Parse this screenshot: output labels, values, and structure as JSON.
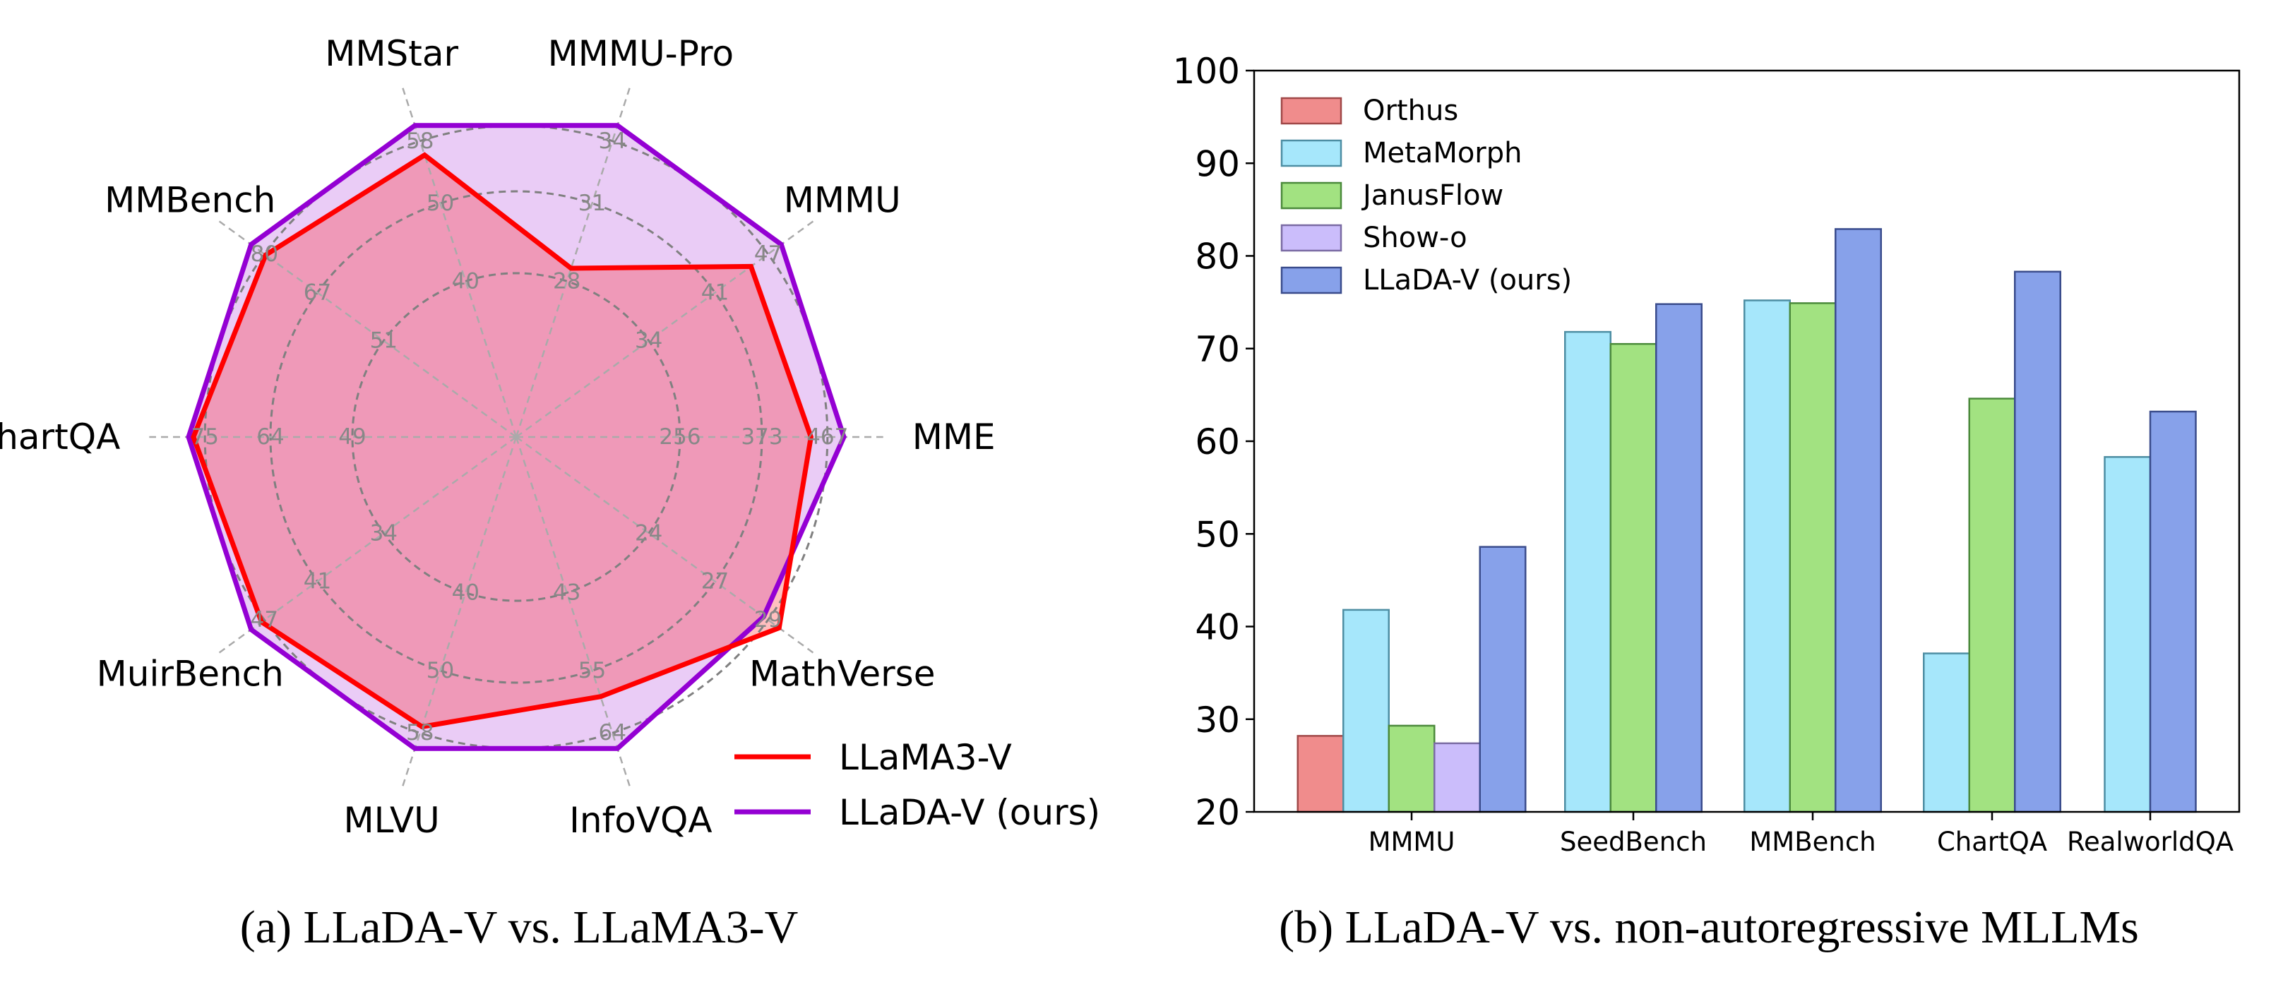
{
  "chart_data": [
    {
      "type": "radar",
      "caption": "(a) LLaDA-V vs. LLaMA3-V",
      "axes": [
        "MME",
        "MMMU",
        "MMMU-Pro",
        "MMStar",
        "MMBench",
        "ChartQA",
        "MuirBench",
        "MLVU",
        "InfoVQA",
        "MathVerse"
      ],
      "tick_labels": [
        [
          "256",
          "373",
          "467"
        ],
        [
          "34",
          "41",
          "47"
        ],
        [
          "28",
          "31",
          "34"
        ],
        [
          "40",
          "50",
          "58"
        ],
        [
          "51",
          "67",
          "80"
        ],
        [
          "49",
          "64",
          "75"
        ],
        [
          "34",
          "41",
          "47"
        ],
        [
          "40",
          "50",
          "58"
        ],
        [
          "43",
          "55",
          "64"
        ],
        [
          "24",
          "27",
          "29"
        ]
      ],
      "series": [
        {
          "name": "LLaMA3-V",
          "color": "#ff0000",
          "values": [
            443,
            44.8,
            28.5,
            56.2,
            79.5,
            78.1,
            46.9,
            57.2,
            59.0,
            29.9
          ]
        },
        {
          "name": "LLaDA-V (ours)",
          "color": "#9400d3",
          "values": [
            490,
            48.0,
            34.0,
            60.0,
            83.0,
            79.0,
            48.0,
            60.0,
            67.0,
            29.2
          ]
        }
      ],
      "grid": true,
      "legend": "bottom-right"
    },
    {
      "type": "bar",
      "caption": "(b) LLaDA-V vs. non-autoregressive MLLMs",
      "categories": [
        "MMMU",
        "SeedBench",
        "MMBench",
        "ChartQA",
        "RealworldQA"
      ],
      "ylim": [
        20,
        100
      ],
      "yticks": [
        "20",
        "30",
        "40",
        "50",
        "60",
        "70",
        "80",
        "90",
        "100"
      ],
      "series": [
        {
          "name": "Orthus",
          "color": "#f08c8c",
          "edge": "#a04848",
          "values": [
            28.2,
            null,
            null,
            null,
            null
          ]
        },
        {
          "name": "MetaMorph",
          "color": "#a6e7fb",
          "edge": "#4d8ea3",
          "values": [
            41.8,
            71.8,
            75.2,
            37.1,
            58.3
          ]
        },
        {
          "name": "JanusFlow",
          "color": "#a2e281",
          "edge": "#4b8a3b",
          "values": [
            29.3,
            70.5,
            74.9,
            64.6,
            null
          ]
        },
        {
          "name": "Show-o",
          "color": "#cbbdfb",
          "edge": "#7a6ba3",
          "values": [
            27.4,
            null,
            null,
            null,
            null
          ]
        },
        {
          "name": "LLaDA-V (ours)",
          "color": "#87a1ea",
          "edge": "#3a4c8c",
          "values": [
            48.6,
            74.8,
            82.9,
            78.3,
            63.2
          ]
        }
      ],
      "grid": false,
      "legend": "top-left"
    }
  ]
}
